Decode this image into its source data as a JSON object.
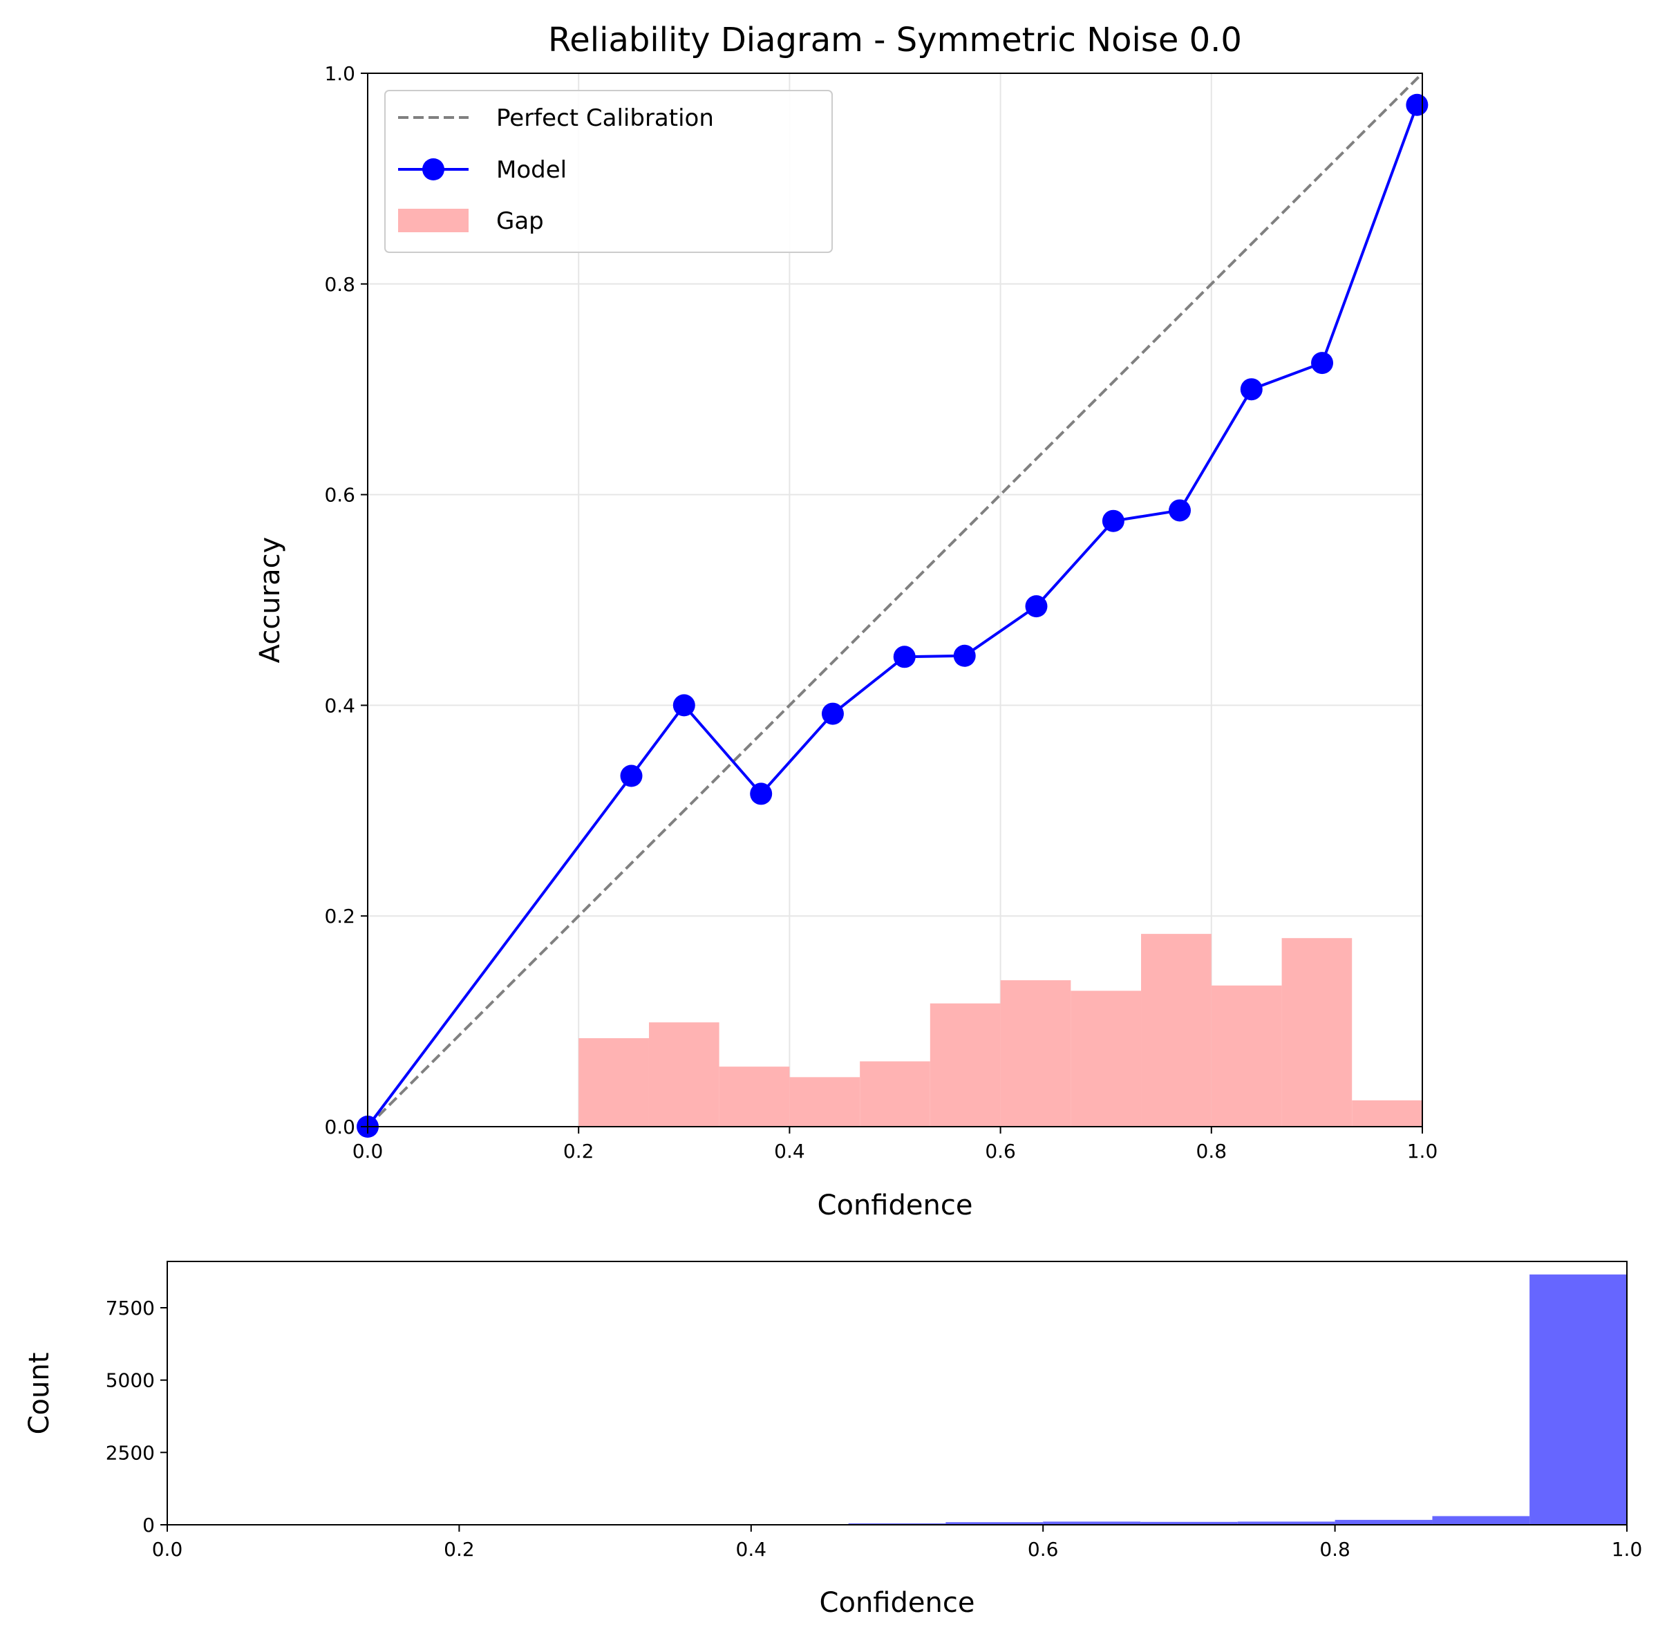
{
  "chart_data": [
    {
      "type": "line",
      "title": "Reliability Diagram - Symmetric Noise 0.0",
      "xlabel": "Confidence",
      "ylabel": "Accuracy",
      "xlim": [
        0.0,
        1.0
      ],
      "ylim": [
        0.0,
        1.0
      ],
      "xticks": [
        "0.0",
        "0.2",
        "0.4",
        "0.6",
        "0.8",
        "1.0"
      ],
      "yticks": [
        "0.0",
        "0.2",
        "0.4",
        "0.6",
        "0.8",
        "1.0"
      ],
      "grid": true,
      "legend": {
        "placement": "upper-left",
        "entries": [
          {
            "label": "Perfect Calibration",
            "kind": "dashed-line",
            "color": "#808080"
          },
          {
            "label": "Model",
            "kind": "line-marker",
            "color": "#0000ff"
          },
          {
            "label": "Gap",
            "kind": "patch",
            "color": "#ffb3b3"
          }
        ]
      },
      "series": [
        {
          "name": "Perfect Calibration",
          "style": "dashed",
          "color": "#808080",
          "x": [
            0.0,
            1.0
          ],
          "y": [
            0.0,
            1.0
          ]
        },
        {
          "name": "Model",
          "style": "line-marker",
          "color": "#0000ff",
          "x": [
            0.0,
            0.25,
            0.3,
            0.373,
            0.441,
            0.509,
            0.566,
            0.634,
            0.707,
            0.77,
            0.838,
            0.905,
            0.995
          ],
          "y": [
            0.0,
            0.333,
            0.4,
            0.316,
            0.392,
            0.446,
            0.447,
            0.494,
            0.575,
            0.585,
            0.7,
            0.725,
            0.97
          ]
        },
        {
          "name": "Gap",
          "style": "bars",
          "color": "#ffb3b3",
          "bin_edges": [
            0.2,
            0.2667,
            0.3333,
            0.4,
            0.4667,
            0.5333,
            0.6,
            0.6667,
            0.7333,
            0.8,
            0.8667,
            0.9333,
            1.0
          ],
          "values": [
            0.084,
            0.099,
            0.057,
            0.047,
            0.062,
            0.117,
            0.139,
            0.129,
            0.183,
            0.134,
            0.179,
            0.025
          ]
        }
      ]
    },
    {
      "type": "bar",
      "xlabel": "Confidence",
      "ylabel": "Count",
      "xlim": [
        0.0,
        1.0
      ],
      "ylim": [
        0,
        9100
      ],
      "xticks": [
        "0.0",
        "0.2",
        "0.4",
        "0.6",
        "0.8",
        "1.0"
      ],
      "yticks": [
        "0",
        "2500",
        "5000",
        "7500"
      ],
      "grid": false,
      "color": "#6666ff",
      "bin_edges": [
        0.0,
        0.0667,
        0.1333,
        0.2,
        0.2667,
        0.3333,
        0.4,
        0.4667,
        0.5333,
        0.6,
        0.6667,
        0.7333,
        0.8,
        0.8667,
        0.9333,
        1.0
      ],
      "values": [
        0,
        0,
        0,
        3,
        5,
        10,
        20,
        50,
        90,
        110,
        100,
        110,
        170,
        300,
        8650
      ]
    }
  ]
}
